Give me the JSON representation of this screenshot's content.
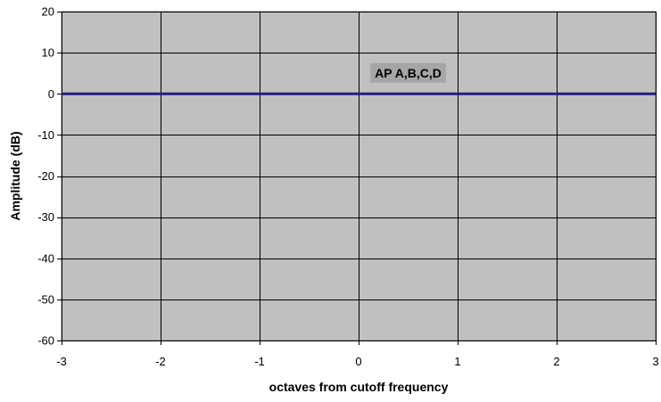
{
  "chart_data": {
    "type": "line",
    "title": "",
    "xlabel": "octaves from cutoff frequency",
    "ylabel": "Amplitude (dB)",
    "xlim": [
      -3,
      3
    ],
    "ylim": [
      -60,
      20
    ],
    "x_ticks": [
      -3,
      -2,
      -1,
      0,
      1,
      2,
      3
    ],
    "y_ticks": [
      20,
      10,
      0,
      -10,
      -20,
      -30,
      -40,
      -50,
      -60
    ],
    "grid": true,
    "series": [
      {
        "name": "AP A,B,C,D",
        "color": "#1f1f7a",
        "x": [
          -3,
          -2,
          -1,
          0,
          1,
          2,
          3
        ],
        "y": [
          0,
          0,
          0,
          0,
          0,
          0,
          0
        ]
      }
    ],
    "annotations": [
      {
        "text": "AP A,B,C,D",
        "x": 0.5,
        "y": 4.8
      }
    ],
    "colors": {
      "plot_background": "#c0c0c0",
      "annotation_background": "#a6a6a6",
      "grid": "#000000"
    }
  }
}
